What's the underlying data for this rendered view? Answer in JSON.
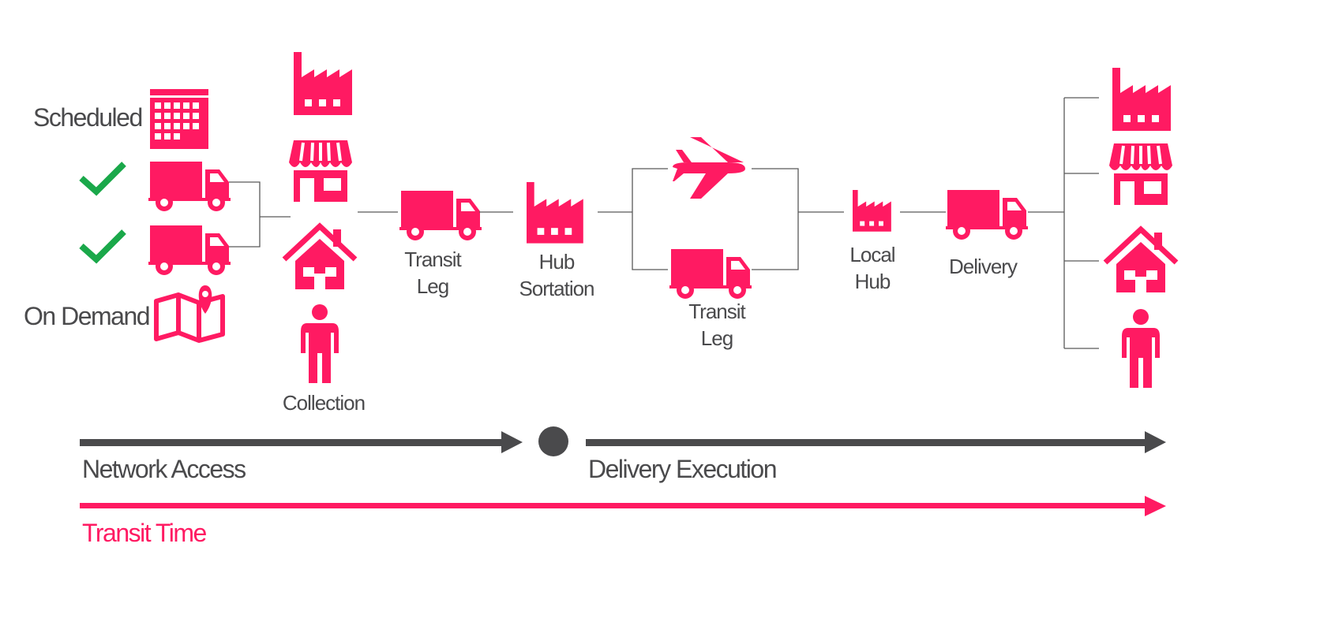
{
  "colors": {
    "accent": "#ff1a62",
    "dark": "#4a4a4c",
    "check": "#1aa84a",
    "connector": "#595959"
  },
  "access_types": {
    "scheduled": "Scheduled",
    "on_demand": "On Demand"
  },
  "stages": {
    "collection": "Collection",
    "transit_leg_1": [
      "Transit",
      "Leg"
    ],
    "hub_sortation": [
      "Hub",
      "Sortation"
    ],
    "transit_leg_2": [
      "Transit",
      "Leg"
    ],
    "local_hub": [
      "Local",
      "Hub"
    ],
    "delivery": "Delivery"
  },
  "phases": {
    "network_access": "Network Access",
    "delivery_execution": "Delivery Execution",
    "transit_time": "Transit Time"
  },
  "icons": [
    "calendar-icon",
    "check-icon",
    "truck-icon",
    "map-pin-icon",
    "factory-icon",
    "shop-icon",
    "house-icon",
    "person-icon",
    "airplane-icon"
  ]
}
